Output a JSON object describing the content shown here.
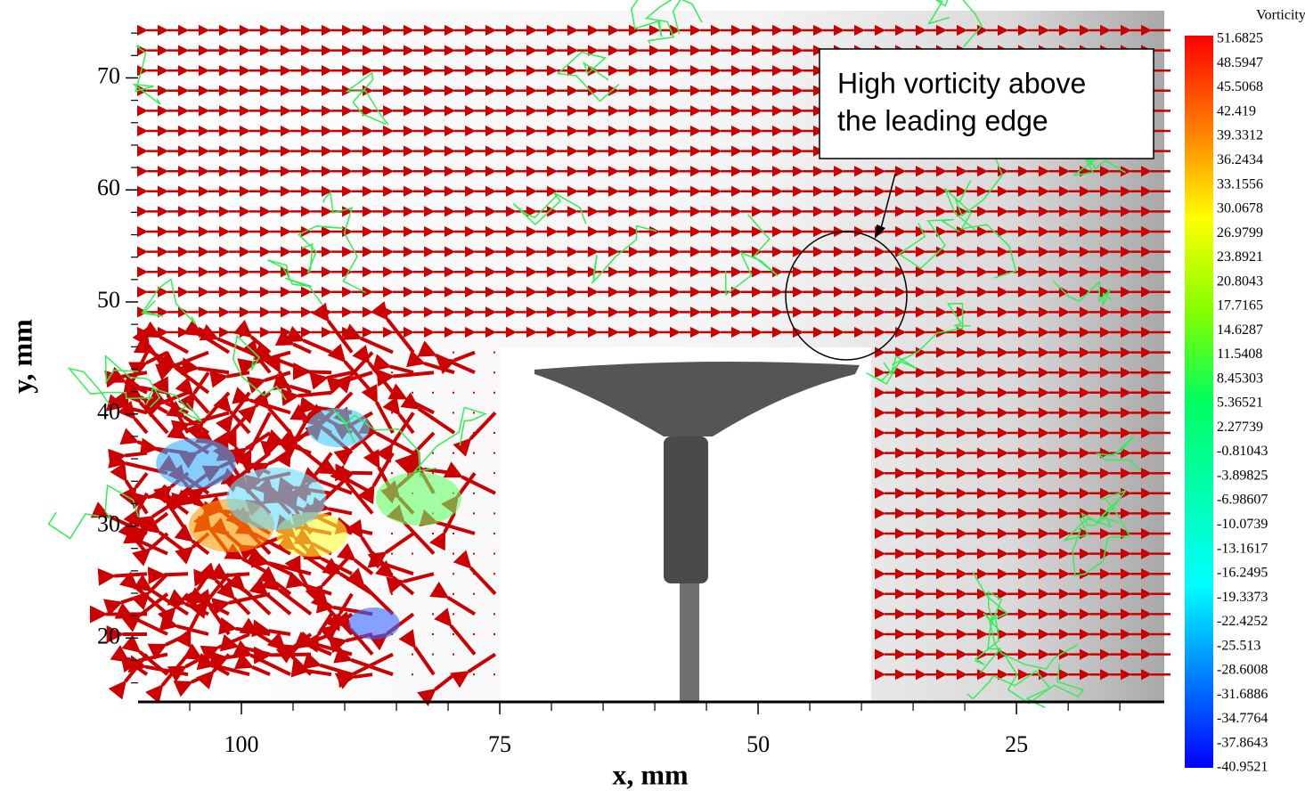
{
  "chart_data": {
    "type": "vector-field",
    "x_label": "x, mm",
    "y_label": "y, mm",
    "xlim": [
      110,
      10.7
    ],
    "ylim": [
      14.3,
      76
    ],
    "xticks": [
      100,
      75,
      50,
      25
    ],
    "yticks": [
      20,
      30,
      40,
      50,
      60,
      70
    ],
    "xminorticks": [
      105,
      95,
      90,
      85,
      80,
      70,
      65,
      60,
      55,
      45,
      40,
      35,
      30,
      20,
      15
    ],
    "yminorticks": [
      16,
      18,
      22,
      24,
      26,
      28,
      32,
      34,
      36,
      38,
      42,
      44,
      46,
      48,
      52,
      54,
      56,
      58,
      62,
      64,
      66,
      68,
      72,
      74
    ],
    "colorbar": {
      "title": "Vorticity",
      "range": [
        -40.9521,
        51.6825
      ],
      "ticks": [
        51.6825,
        48.5947,
        45.5068,
        42.419,
        39.3312,
        36.2434,
        33.1556,
        30.0678,
        26.9799,
        23.8921,
        20.8043,
        17.7165,
        14.6287,
        11.5408,
        8.45303,
        5.36521,
        2.27739,
        -0.81043,
        -3.89825,
        -6.98607,
        -10.0739,
        -13.1617,
        -16.2495,
        -19.3373,
        -22.4252,
        -25.513,
        -28.6008,
        -31.6886,
        -34.7764,
        -37.8643,
        -40.9521
      ]
    },
    "annotation": [
      "High vorticity above",
      "the leading edge"
    ]
  }
}
